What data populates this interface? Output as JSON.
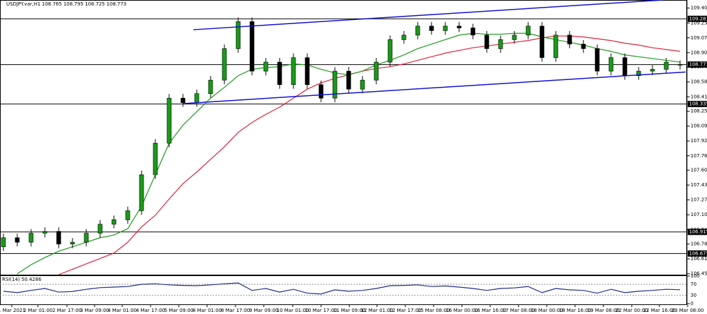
{
  "chart_data": {
    "type": "candlestick",
    "title": "USDJPY.var,H1  108.765 108.795 108.725 108.773",
    "close": [
      106.85,
      106.8,
      106.9,
      106.92,
      106.78,
      106.8,
      106.9,
      107.0,
      107.05,
      107.15,
      107.55,
      107.9,
      108.4,
      108.35,
      108.45,
      108.6,
      108.95,
      109.25,
      108.7,
      108.8,
      108.55,
      108.85,
      108.55,
      108.4,
      108.7,
      108.5,
      108.6,
      108.8,
      109.05,
      109.1,
      109.2,
      109.15,
      109.2,
      109.18,
      109.1,
      108.95,
      109.05,
      109.1,
      109.2,
      108.85,
      109.1,
      109.0,
      108.95,
      108.7,
      108.85,
      108.65,
      108.7,
      108.72,
      108.8,
      108.773
    ],
    "open": [
      106.75,
      106.85,
      106.8,
      106.9,
      106.92,
      106.78,
      106.8,
      106.9,
      107.0,
      107.05,
      107.15,
      107.55,
      107.9,
      108.4,
      108.35,
      108.45,
      108.6,
      108.95,
      109.25,
      108.7,
      108.8,
      108.55,
      108.85,
      108.55,
      108.4,
      108.7,
      108.5,
      108.6,
      108.8,
      109.05,
      109.1,
      109.2,
      109.15,
      109.2,
      109.18,
      109.1,
      108.95,
      109.05,
      109.1,
      109.2,
      108.85,
      109.1,
      109.0,
      108.95,
      108.7,
      108.85,
      108.65,
      108.7,
      108.72,
      108.765
    ],
    "ma_fast": {
      "color": "#1a9a1a",
      "values": [
        null,
        106.45,
        106.55,
        106.63,
        106.7,
        106.75,
        106.8,
        106.85,
        106.88,
        106.95,
        107.2,
        107.55,
        107.9,
        108.1,
        108.25,
        108.4,
        108.52,
        108.65,
        108.72,
        108.74,
        108.75,
        108.78,
        108.77,
        108.72,
        108.68,
        108.66,
        108.7,
        108.77,
        108.82,
        108.88,
        108.95,
        109.0,
        109.05,
        109.1,
        109.12,
        109.11,
        109.11,
        109.12,
        109.12,
        109.08,
        109.05,
        109.02,
        108.99,
        108.95,
        108.92,
        108.88,
        108.86,
        108.84,
        108.82,
        108.8
      ]
    },
    "ma_slow": {
      "color": "#e0203a",
      "values": [
        null,
        null,
        null,
        null,
        106.44,
        106.5,
        106.56,
        106.62,
        106.68,
        106.8,
        106.97,
        107.1,
        107.28,
        107.45,
        107.58,
        107.72,
        107.86,
        108.02,
        108.13,
        108.22,
        108.3,
        108.4,
        108.5,
        108.57,
        108.62,
        108.66,
        108.7,
        108.73,
        108.75,
        108.78,
        108.82,
        108.86,
        108.9,
        108.93,
        108.96,
        108.98,
        109.0,
        109.02,
        109.04,
        109.07,
        109.09,
        109.09,
        109.08,
        109.06,
        109.04,
        109.01,
        108.99,
        108.96,
        108.94,
        108.92
      ]
    },
    "ylim": [
      106.44,
      109.49
    ],
    "yticks": [
      {
        "value": 109.4,
        "label": "109.400"
      },
      109.235,
      {
        "value": 109.07,
        "label": "109.070"
      },
      108.905,
      108.745,
      {
        "value": 108.58,
        "label": "108.580"
      },
      108.415,
      108.255,
      {
        "value": 108.09,
        "label": "108.090"
      },
      107.925,
      {
        "value": 107.76,
        "label": "107.760"
      },
      {
        "value": 107.6,
        "label": "107.600"
      },
      107.435,
      {
        "value": 107.27,
        "label": "107.270"
      },
      107.105,
      {
        "value": 106.94,
        "label": "106.940"
      },
      {
        "value": 106.78,
        "label": "106.780"
      },
      106.615,
      {
        "value": 106.45,
        "label": "106.450"
      }
    ],
    "levels": [
      109.281,
      108.773,
      108.335,
      106.915,
      106.675
    ],
    "channel_color": "#1010d0",
    "trendlines": [
      {
        "from": [
          13.75,
          109.16
        ],
        "to": [
          47.75,
          109.49
        ]
      },
      {
        "from": [
          13,
          108.34
        ],
        "to": [
          49.4,
          108.69
        ]
      }
    ],
    "xlabels": [
      {
        "value": 0.6,
        "label": "1 Mar 2021"
      },
      {
        "value": 2.5,
        "label": "2 Mar 01:00"
      },
      {
        "value": 4.6,
        "label": "2 Mar 17:00"
      },
      {
        "value": 6.6,
        "label": "3 Mar 09:00"
      },
      {
        "value": 8.6,
        "label": "4 Mar 01:00"
      },
      {
        "value": 10.65,
        "label": "4 Mar 17:00"
      },
      {
        "value": 12.7,
        "label": "5 Mar 09:00"
      },
      {
        "value": 14.75,
        "label": "8 Mar 01:00"
      },
      {
        "value": 16.8,
        "label": "8 Mar 17:00"
      },
      {
        "value": 18.85,
        "label": "9 Mar 09:00"
      },
      {
        "value": 20.95,
        "label": "10 Mar 01:00"
      },
      {
        "value": 23.0,
        "label": "10 Mar 17:00"
      },
      {
        "value": 25.05,
        "label": "11 Mar 09:00"
      },
      {
        "value": 27.05,
        "label": "12 Mar 01:00"
      },
      {
        "value": 29.1,
        "label": "12 Mar 17:00"
      },
      {
        "value": 31.15,
        "label": "15 Mar 08:00"
      },
      {
        "value": 33.2,
        "label": "16 Mar 00:00"
      },
      {
        "value": 35.25,
        "label": "16 Mar 16:00"
      },
      {
        "value": 37.3,
        "label": "17 Mar 08:00"
      },
      {
        "value": 39.35,
        "label": "18 Mar 00:00"
      },
      {
        "value": 41.4,
        "label": "18 Mar 16:00"
      },
      {
        "value": 43.45,
        "label": "19 Mar 08:00"
      },
      {
        "value": 45.5,
        "label": "22 Mar 00:00"
      },
      {
        "value": 47.5,
        "label": "22 Mar 16:00"
      },
      {
        "value": 49.55,
        "label": "23 Mar 08:00"
      }
    ],
    "rsi": {
      "label": "RSI(14) 50.4286",
      "color": "#1c2a8a",
      "ylim": [
        0,
        100
      ],
      "yticks": [
        100,
        70,
        30,
        0
      ],
      "values": [
        45,
        40,
        48,
        55,
        42,
        44,
        52,
        58,
        60,
        62,
        70,
        72,
        68,
        66,
        65,
        68,
        72,
        75,
        48,
        55,
        42,
        52,
        38,
        35,
        50,
        45,
        48,
        55,
        65,
        66,
        68,
        62,
        64,
        60,
        55,
        48,
        55,
        57,
        62,
        40,
        55,
        50,
        48,
        38,
        52,
        40,
        45,
        48,
        52,
        50.4286
      ]
    }
  }
}
